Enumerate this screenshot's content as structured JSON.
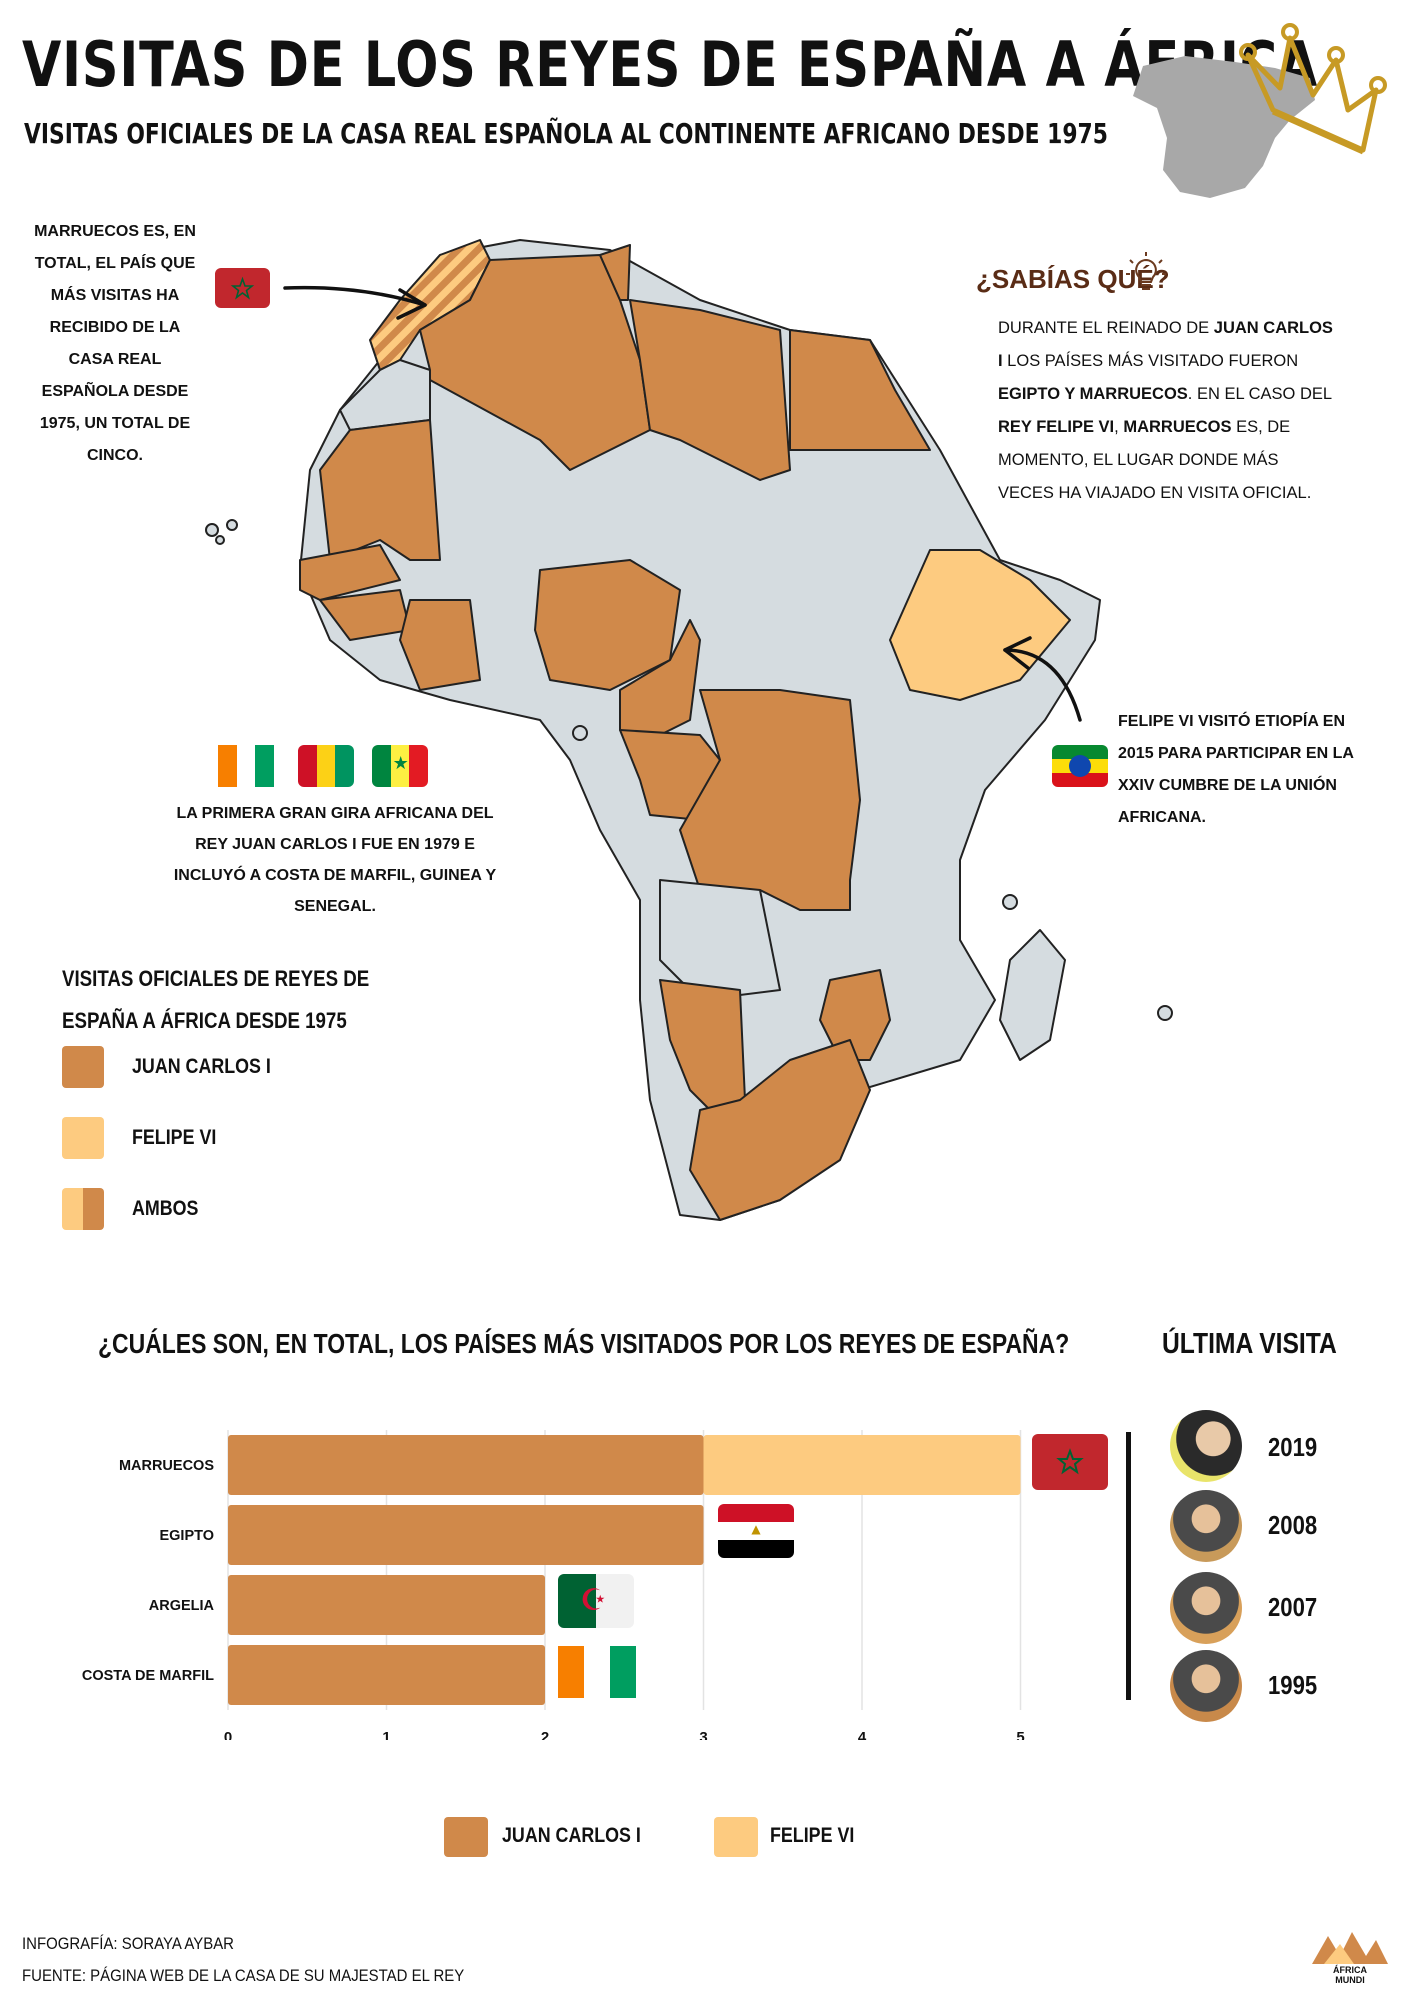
{
  "header": {
    "title": "VISITAS DE LOS REYES DE ESPAÑA A ÁFRICA",
    "subtitle": "VISITAS OFICIALES DE LA CASA REAL ESPAÑOLA AL CONTINENTE AFRICANO DESDE 1975"
  },
  "notes": {
    "morocco": "MARRUECOS ES, EN TOTAL, EL PAÍS QUE MÁS VISITAS HA RECIBIDO DE LA CASA REAL ESPAÑOLA DESDE 1975, UN TOTAL DE CINCO.",
    "sabias_title": "¿SABÍAS QUÉ?",
    "sabias_body": [
      "DURANTE EL REINADO DE ",
      "JUAN CARLOS I",
      " LOS PAÍSES MÁS VISITADO FUERON ",
      "EGIPTO Y MARRUECOS",
      ". EN EL CASO DEL ",
      "REY FELIPE VI",
      ", ",
      "MARRUECOS",
      " ES, DE MOMENTO, EL LUGAR DONDE MÁS VECES HA VIAJADO EN VISITA OFICIAL."
    ],
    "first_tour": "LA PRIMERA GRAN GIRA AFRICANA DEL REY JUAN CARLOS I FUE EN 1979 E INCLUYÓ A COSTA DE MARFIL, GUINEA Y SENEGAL.",
    "ethiopia": "FELIPE VI VISITÓ ETIOPÍA EN 2015 PARA PARTICIPAR EN LA XXIV CUMBRE DE LA UNIÓN AFRICANA."
  },
  "map_legend": {
    "title_line1": "VISITAS OFICIALES DE REYES DE",
    "title_line2": "ESPAÑA A ÁFRICA DESDE 1975",
    "items": [
      {
        "label": "JUAN CARLOS I",
        "color": "#d0894a"
      },
      {
        "label": "FELIPE VI",
        "color": "#fdcb80"
      },
      {
        "label": "AMBOS",
        "color": "#d0894a"
      }
    ]
  },
  "colors": {
    "juan_carlos": "#d0894a",
    "felipe": "#fdcb80",
    "land": "#d5dce0",
    "border": "#222222"
  },
  "chart_title": "¿CUÁLES SON, EN TOTAL, LOS PAÍSES MÁS VISITADOS POR LOS REYES DE ESPAÑA?",
  "last_visit_title": "ÚLTIMA VISITA",
  "chart_data": {
    "type": "bar",
    "orientation": "horizontal",
    "stacked": true,
    "categories": [
      "MARRUECOS",
      "EGIPTO",
      "ARGELIA",
      "COSTA DE MARFIL"
    ],
    "series": [
      {
        "name": "JUAN CARLOS I",
        "values": [
          3,
          3,
          2,
          2
        ],
        "color": "#d0894a"
      },
      {
        "name": "FELIPE VI",
        "values": [
          2,
          0,
          0,
          0
        ],
        "color": "#fdcb80"
      }
    ],
    "xlim": [
      0,
      5
    ],
    "xticks": [
      "0",
      "1",
      "2",
      "3",
      "4",
      "5"
    ],
    "grid": true,
    "legend_position": "bottom"
  },
  "last_visits": [
    "2019",
    "2008",
    "2007",
    "1995"
  ],
  "footer": {
    "credit": "INFOGRAFÍA: SORAYA AYBAR",
    "source": "FUENTE: PÁGINA WEB DE LA CASA DE SU MAJESTAD EL REY",
    "logo_text": "ÁFRICA MUNDI"
  },
  "icons": [
    "spain-map-icon",
    "crown-icon",
    "lightbulb-icon",
    "morocco-flag-icon",
    "egypt-flag-icon",
    "algeria-flag-icon",
    "ivory-coast-flag-icon",
    "guinea-flag-icon",
    "senegal-flag-icon",
    "ethiopia-flag-icon"
  ]
}
